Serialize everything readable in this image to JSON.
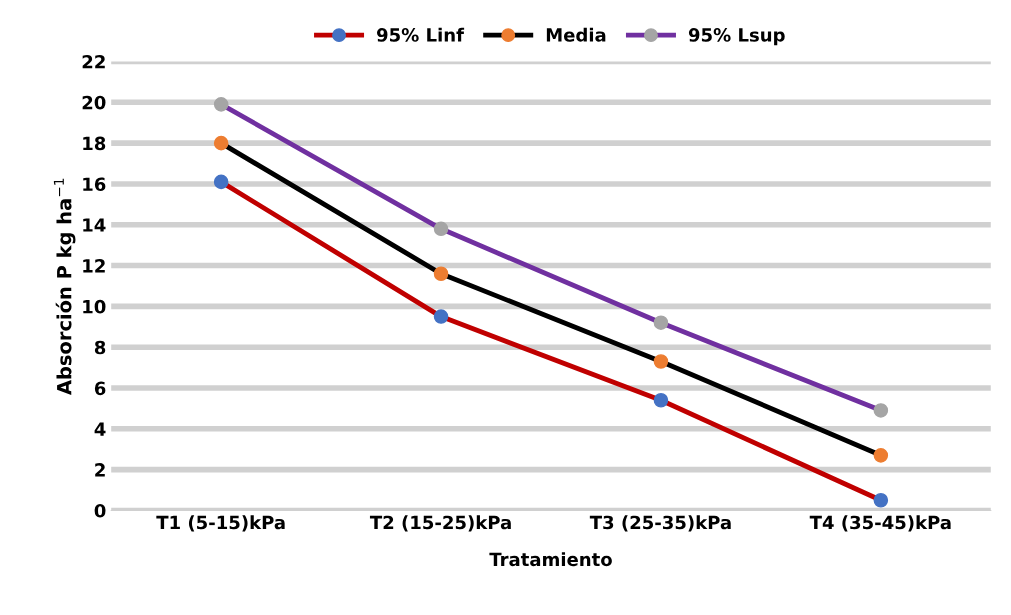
{
  "chart_data": {
    "type": "line",
    "xlabel": "Tratamiento",
    "ylabel": "Absorción P kg ha$^{−1}$",
    "categories": [
      "T1 (5-15)kPa",
      "T2 (15-25)kPa",
      "T3 (25-35)kPa",
      "T4 (35-45)kPa"
    ],
    "series": [
      {
        "name": "95% Linf",
        "color": "#c00000",
        "colors": [
          "#4472c4",
          "#4472c4",
          "#4472c4",
          "#4472c4"
        ],
        "values": [
          16.1,
          9.5,
          5.4,
          0.5
        ]
      },
      {
        "name": "Media",
        "color": "#000000",
        "colors": [
          "#ed7d31",
          "#ed7d31",
          "#ed7d31",
          "#ed7d31"
        ],
        "values": [
          18.0,
          11.6,
          7.3,
          2.7
        ]
      },
      {
        "name": "95% Lsup",
        "color": "#7030a0",
        "colors": [
          "#a5a5a5",
          "#a5a5a5",
          "#a5a5a5",
          "#a5a5a5"
        ],
        "values": [
          19.9,
          13.8,
          9.2,
          4.9
        ]
      }
    ],
    "ylim": [
      0,
      22
    ],
    "yticks": [
      0,
      2,
      4,
      6,
      8,
      10,
      12,
      14,
      16,
      18,
      20,
      22
    ],
    "grid": "y",
    "legend": "top",
    "marker": "circle",
    "line_style": "solid"
  }
}
